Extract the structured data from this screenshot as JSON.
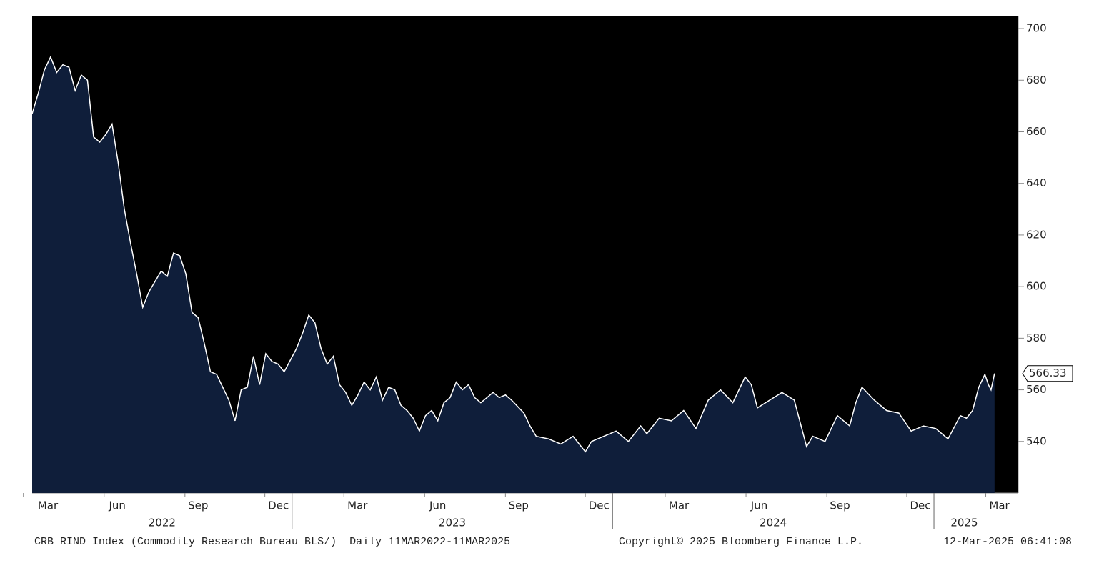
{
  "chart_data": {
    "type": "area",
    "source_line": "CRB RIND Index (Commodity Research Bureau BLS/)  Daily 11MAR2022-11MAR2025",
    "copyright": "Copyright© 2025 Bloomberg Finance L.P.",
    "timestamp": "12-Mar-2025 06:41:08",
    "xlim": [
      "2022-03-11",
      "2025-04-07"
    ],
    "ylim": [
      520,
      705
    ],
    "yticks": [
      540,
      560,
      580,
      600,
      620,
      640,
      660,
      680,
      700
    ],
    "xticks": [
      {
        "value": "2022-03",
        "label": "Mar"
      },
      {
        "value": "2022-06",
        "label": "Jun"
      },
      {
        "value": "2022-09",
        "label": "Sep"
      },
      {
        "value": "2022-12",
        "label": "Dec"
      },
      {
        "value": "2023-03",
        "label": "Mar"
      },
      {
        "value": "2023-06",
        "label": "Jun"
      },
      {
        "value": "2023-09",
        "label": "Sep"
      },
      {
        "value": "2023-12",
        "label": "Dec"
      },
      {
        "value": "2024-03",
        "label": "Mar"
      },
      {
        "value": "2024-06",
        "label": "Jun"
      },
      {
        "value": "2024-09",
        "label": "Sep"
      },
      {
        "value": "2024-12",
        "label": "Dec"
      },
      {
        "value": "2025-03",
        "label": "Mar"
      }
    ],
    "years": [
      2022,
      2023,
      2024,
      2025
    ],
    "background": "#000000",
    "series": [
      {
        "name": "CRB RIND Index",
        "color": "#ffffff",
        "fill": "#0f1e3a",
        "x": [
          "2022-03-11",
          "2022-03-18",
          "2022-03-25",
          "2022-04-01",
          "2022-04-08",
          "2022-04-15",
          "2022-04-22",
          "2022-04-29",
          "2022-05-06",
          "2022-05-13",
          "2022-05-20",
          "2022-05-27",
          "2022-06-03",
          "2022-06-10",
          "2022-06-17",
          "2022-06-24",
          "2022-07-01",
          "2022-07-08",
          "2022-07-15",
          "2022-07-22",
          "2022-07-29",
          "2022-08-05",
          "2022-08-12",
          "2022-08-19",
          "2022-08-26",
          "2022-09-02",
          "2022-09-09",
          "2022-09-16",
          "2022-09-23",
          "2022-09-30",
          "2022-10-07",
          "2022-10-14",
          "2022-10-21",
          "2022-10-28",
          "2022-11-04",
          "2022-11-11",
          "2022-11-18",
          "2022-11-25",
          "2022-12-02",
          "2022-12-09",
          "2022-12-16",
          "2022-12-23",
          "2023-01-06",
          "2023-01-13",
          "2023-01-20",
          "2023-01-27",
          "2023-02-03",
          "2023-02-10",
          "2023-02-17",
          "2023-02-24",
          "2023-03-03",
          "2023-03-10",
          "2023-03-17",
          "2023-03-24",
          "2023-03-31",
          "2023-04-07",
          "2023-04-14",
          "2023-04-21",
          "2023-04-28",
          "2023-05-05",
          "2023-05-12",
          "2023-05-19",
          "2023-05-26",
          "2023-06-02",
          "2023-06-09",
          "2023-06-16",
          "2023-06-23",
          "2023-06-30",
          "2023-07-07",
          "2023-07-14",
          "2023-07-21",
          "2023-07-28",
          "2023-08-04",
          "2023-08-11",
          "2023-08-18",
          "2023-08-25",
          "2023-09-01",
          "2023-09-08",
          "2023-09-22",
          "2023-09-29",
          "2023-10-06",
          "2023-10-20",
          "2023-11-03",
          "2023-11-17",
          "2023-12-01",
          "2023-12-08",
          "2023-12-22",
          "2024-01-05",
          "2024-01-19",
          "2024-02-02",
          "2024-02-09",
          "2024-02-23",
          "2024-03-08",
          "2024-03-22",
          "2024-04-05",
          "2024-04-19",
          "2024-05-03",
          "2024-05-17",
          "2024-05-31",
          "2024-06-07",
          "2024-06-14",
          "2024-06-28",
          "2024-07-12",
          "2024-07-26",
          "2024-08-09",
          "2024-08-16",
          "2024-08-30",
          "2024-09-13",
          "2024-09-27",
          "2024-10-04",
          "2024-10-11",
          "2024-10-25",
          "2024-11-08",
          "2024-11-22",
          "2024-12-06",
          "2024-12-20",
          "2025-01-03",
          "2025-01-17",
          "2025-01-31",
          "2025-02-07",
          "2025-02-14",
          "2025-02-21",
          "2025-02-28",
          "2025-03-04",
          "2025-03-07",
          "2025-03-11"
        ],
        "values": [
          667,
          675,
          684,
          689,
          683,
          686,
          685,
          676,
          682,
          680,
          658,
          656,
          659,
          663,
          648,
          630,
          617,
          605,
          592,
          598,
          602,
          606,
          604,
          613,
          612,
          605,
          590,
          588,
          578,
          567,
          566,
          561,
          556,
          548,
          560,
          561,
          573,
          562,
          574,
          571,
          570,
          567,
          576,
          582,
          589,
          586,
          576,
          570,
          573,
          562,
          559,
          554,
          558,
          563,
          560,
          565,
          556,
          561,
          560,
          554,
          552,
          549,
          544,
          550,
          552,
          548,
          555,
          557,
          563,
          560,
          562,
          557,
          555,
          557,
          559,
          557,
          558,
          556,
          551,
          546,
          542,
          541,
          539,
          542,
          536,
          540,
          542,
          544,
          540,
          546,
          543,
          549,
          548,
          552,
          545,
          556,
          560,
          555,
          565,
          562,
          553,
          556,
          559,
          556,
          538,
          542,
          540,
          550,
          546,
          555,
          561,
          556,
          552,
          551,
          544,
          546,
          545,
          541,
          550,
          549,
          552,
          561,
          566,
          562,
          560,
          566.33
        ]
      }
    ]
  }
}
